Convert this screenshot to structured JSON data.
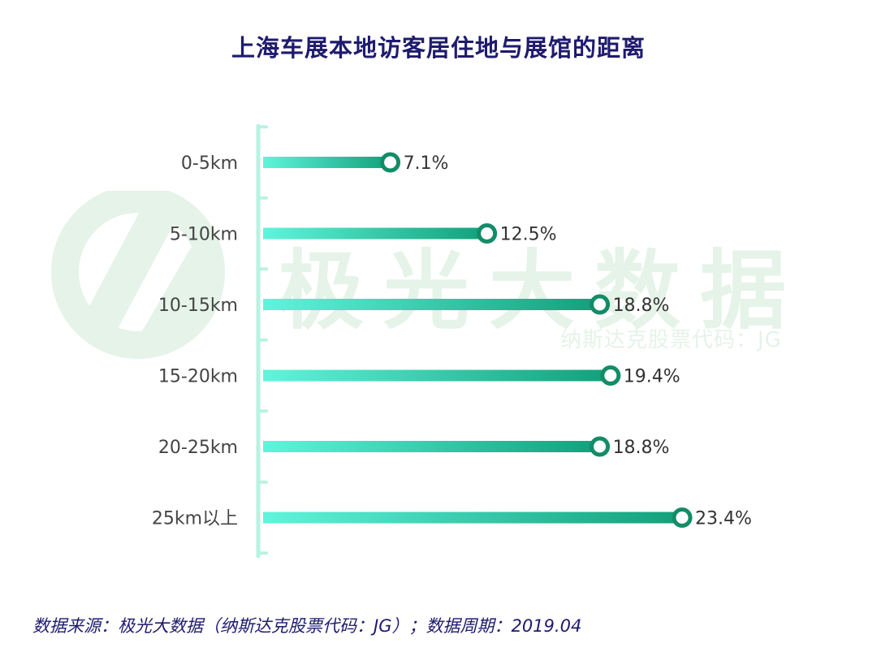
{
  "chart_data": {
    "type": "bar",
    "orientation": "horizontal",
    "title": "上海车展本地访客居住地与展馆的距离",
    "categories": [
      "0-5km",
      "5-10km",
      "10-15km",
      "15-20km",
      "20-25km",
      "25km以上"
    ],
    "values": [
      7.1,
      12.5,
      18.8,
      19.4,
      18.8,
      23.4
    ],
    "value_labels": [
      "7.1%",
      "12.5%",
      "18.8%",
      "19.4%",
      "18.8%",
      "23.4%"
    ],
    "unit": "%",
    "grid": false,
    "legend": "none"
  },
  "watermark": {
    "brand": "极光大数据",
    "sub": "纳斯达克股票代码：JG"
  },
  "footer": {
    "source": "数据来源：极光大数据（纳斯达克股票代码：JG）；数据周期：2019.04"
  },
  "colors": {
    "title": "#1e1b6e",
    "bar_start": "#5ff5dc",
    "bar_end": "#11a07a",
    "marker": "#138c68",
    "axis": "#b9f2e2",
    "watermark": "#e5f3e8"
  }
}
